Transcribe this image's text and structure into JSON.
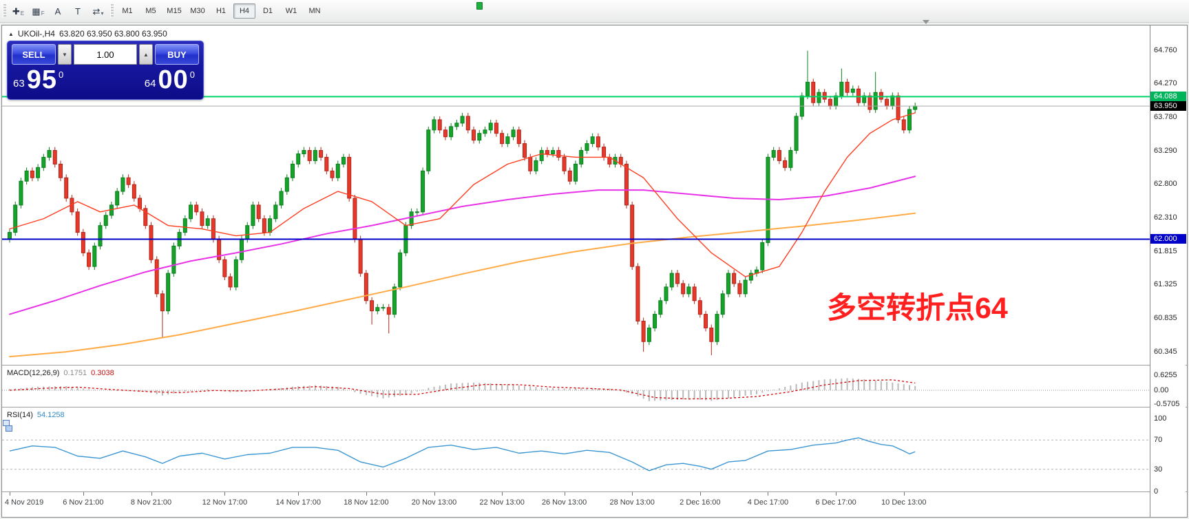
{
  "toolbar": {
    "tool_icons": [
      {
        "name": "crosshair-icon",
        "glyph": "✚",
        "sub": "E"
      },
      {
        "name": "grid-icon",
        "glyph": "▦",
        "sub": "F"
      },
      {
        "name": "text-label-icon",
        "glyph": "A",
        "sub": ""
      },
      {
        "name": "text-box-icon",
        "glyph": "T",
        "sub": ""
      },
      {
        "name": "cursor-cycle-icon",
        "glyph": "⇄",
        "sub": "▾"
      }
    ],
    "timeframes": [
      "M1",
      "M5",
      "M15",
      "M30",
      "H1",
      "H4",
      "D1",
      "W1",
      "MN"
    ],
    "active_timeframe": "H4"
  },
  "window": {
    "symbol_title": "UKOil-,H4",
    "ohlc": "63.820 63.950 63.800 63.950"
  },
  "trade_panel": {
    "sell_label": "SELL",
    "buy_label": "BUY",
    "volume": "1.00",
    "spin_down": "▼",
    "spin_up": "▲",
    "sell_price": {
      "small": "63",
      "big": "95",
      "sup": "0"
    },
    "buy_price": {
      "small": "64",
      "big": "00",
      "sup": "0"
    }
  },
  "annotation": {
    "text": "多空转折点64",
    "color": "#ff1f1f"
  },
  "price_scale": {
    "labels": [
      "64.760",
      "64.270",
      "63.780",
      "63.290",
      "62.800",
      "62.310",
      "61.815",
      "61.325",
      "60.835",
      "60.345"
    ],
    "tags": [
      {
        "text": "64.088",
        "price": 64.088,
        "color": "#00b45c"
      },
      {
        "text": "63.950",
        "price": 63.95,
        "color": "#000000"
      },
      {
        "text": "62.000",
        "price": 62.0,
        "color": "#0000c8"
      }
    ]
  },
  "macd_panel": {
    "label": "MACD(12,26,9)",
    "value_main": "0.1751",
    "value_signal": "0.3038",
    "scale": [
      [
        "0.6255",
        0.6255
      ],
      [
        "0.00",
        0
      ],
      [
        "-0.5705",
        -0.5705
      ]
    ]
  },
  "rsi_panel": {
    "label": "RSI(14)",
    "value": "54.1258",
    "scale": [
      [
        "100",
        100
      ],
      [
        "70",
        70
      ],
      [
        "30",
        30
      ],
      [
        "0",
        0
      ]
    ]
  },
  "time_axis": {
    "labels": [
      {
        "t": "4 Nov 2019",
        "i": 0
      },
      {
        "t": "6 Nov 21:00",
        "i": 13
      },
      {
        "t": "8 Nov 21:00",
        "i": 25
      },
      {
        "t": "12 Nov 17:00",
        "i": 38
      },
      {
        "t": "14 Nov 17:00",
        "i": 51
      },
      {
        "t": "18 Nov 12:00",
        "i": 63
      },
      {
        "t": "20 Nov 13:00",
        "i": 75
      },
      {
        "t": "22 Nov 13:00",
        "i": 87
      },
      {
        "t": "26 Nov 13:00",
        "i": 98
      },
      {
        "t": "28 Nov 13:00",
        "i": 110
      },
      {
        "t": "2 Dec 16:00",
        "i": 122
      },
      {
        "t": "4 Dec 17:00",
        "i": 134
      },
      {
        "t": "6 Dec 17:00",
        "i": 146
      },
      {
        "t": "10 Dec 13:00",
        "i": 158
      }
    ]
  },
  "chart_data": {
    "type": "candlestick",
    "symbol": "UKOil-",
    "timeframe": "H4",
    "title": "UKOil-,H4",
    "ylim": [
      60.16,
      65.09
    ],
    "first_open": 62.0,
    "wick_default": 0.05,
    "closes": [
      62.1,
      62.5,
      62.85,
      63.0,
      62.9,
      63.05,
      63.2,
      63.3,
      63.1,
      62.9,
      62.6,
      62.4,
      62.1,
      61.8,
      61.6,
      61.9,
      62.2,
      62.35,
      62.5,
      62.7,
      62.9,
      62.8,
      62.6,
      62.45,
      62.2,
      61.7,
      61.2,
      60.95,
      61.5,
      61.9,
      62.1,
      62.3,
      62.5,
      62.4,
      62.2,
      62.3,
      62.0,
      61.7,
      61.45,
      61.3,
      61.7,
      62.0,
      62.2,
      62.5,
      62.3,
      62.1,
      62.3,
      62.5,
      62.7,
      62.9,
      63.1,
      63.25,
      63.3,
      63.15,
      63.3,
      63.2,
      63.0,
      62.9,
      63.1,
      63.2,
      62.6,
      62.0,
      61.5,
      61.1,
      60.95,
      61.0,
      61.0,
      60.9,
      61.3,
      61.8,
      62.2,
      62.4,
      62.4,
      63.0,
      63.6,
      63.75,
      63.6,
      63.5,
      63.65,
      63.7,
      63.8,
      63.6,
      63.45,
      63.55,
      63.6,
      63.7,
      63.55,
      63.4,
      63.5,
      63.6,
      63.4,
      63.2,
      63.0,
      63.15,
      63.3,
      63.25,
      63.3,
      63.2,
      63.0,
      62.85,
      63.1,
      63.3,
      63.4,
      63.5,
      63.35,
      63.2,
      63.1,
      63.2,
      63.1,
      62.5,
      61.6,
      60.8,
      60.5,
      60.7,
      60.9,
      61.1,
      61.3,
      61.5,
      61.35,
      61.2,
      61.3,
      61.1,
      60.9,
      60.7,
      60.5,
      60.9,
      61.2,
      61.5,
      61.35,
      61.2,
      61.4,
      61.5,
      61.55,
      61.95,
      63.2,
      63.3,
      63.15,
      63.05,
      63.3,
      63.8,
      64.1,
      64.3,
      64.0,
      64.15,
      64.05,
      63.95,
      64.1,
      64.3,
      64.15,
      64.2,
      64.0,
      64.1,
      63.9,
      64.15,
      64.05,
      63.95,
      64.1,
      63.75,
      63.6,
      63.9,
      63.95
    ],
    "wick_overrides": {
      "27": {
        "l": 60.55
      },
      "64": {
        "l": 60.75
      },
      "67": {
        "l": 60.62
      },
      "112": {
        "l": 60.35
      },
      "124": {
        "l": 60.3
      },
      "141": {
        "h": 64.76
      },
      "147": {
        "h": 64.5
      },
      "153": {
        "h": 64.45
      }
    },
    "ma_red": [
      [
        0,
        62.15
      ],
      [
        6,
        62.3
      ],
      [
        12,
        62.55
      ],
      [
        16,
        62.4
      ],
      [
        22,
        62.5
      ],
      [
        28,
        62.2
      ],
      [
        34,
        62.15
      ],
      [
        40,
        62.05
      ],
      [
        46,
        62.1
      ],
      [
        52,
        62.45
      ],
      [
        58,
        62.7
      ],
      [
        64,
        62.55
      ],
      [
        70,
        62.2
      ],
      [
        76,
        62.3
      ],
      [
        82,
        62.8
      ],
      [
        88,
        63.1
      ],
      [
        94,
        63.25
      ],
      [
        100,
        63.2
      ],
      [
        106,
        63.2
      ],
      [
        112,
        62.9
      ],
      [
        118,
        62.3
      ],
      [
        124,
        61.8
      ],
      [
        130,
        61.45
      ],
      [
        136,
        61.6
      ],
      [
        140,
        62.1
      ],
      [
        144,
        62.7
      ],
      [
        148,
        63.2
      ],
      [
        152,
        63.55
      ],
      [
        156,
        63.75
      ],
      [
        160,
        63.85
      ]
    ],
    "ma_magenta": [
      [
        0,
        60.9
      ],
      [
        8,
        61.1
      ],
      [
        16,
        61.32
      ],
      [
        24,
        61.52
      ],
      [
        32,
        61.68
      ],
      [
        40,
        61.8
      ],
      [
        48,
        61.93
      ],
      [
        56,
        62.08
      ],
      [
        64,
        62.2
      ],
      [
        72,
        62.34
      ],
      [
        80,
        62.48
      ],
      [
        88,
        62.58
      ],
      [
        96,
        62.66
      ],
      [
        104,
        62.72
      ],
      [
        112,
        62.72
      ],
      [
        120,
        62.66
      ],
      [
        128,
        62.6
      ],
      [
        136,
        62.58
      ],
      [
        144,
        62.63
      ],
      [
        152,
        62.75
      ],
      [
        160,
        62.92
      ]
    ],
    "ma_orange": [
      [
        0,
        60.28
      ],
      [
        10,
        60.35
      ],
      [
        20,
        60.46
      ],
      [
        30,
        60.6
      ],
      [
        40,
        60.77
      ],
      [
        50,
        60.94
      ],
      [
        60,
        61.12
      ],
      [
        70,
        61.3
      ],
      [
        80,
        61.49
      ],
      [
        90,
        61.67
      ],
      [
        100,
        61.82
      ],
      [
        110,
        61.94
      ],
      [
        120,
        62.03
      ],
      [
        130,
        62.11
      ],
      [
        140,
        62.19
      ],
      [
        150,
        62.28
      ],
      [
        160,
        62.38
      ]
    ],
    "levels": {
      "resistance": 64.088,
      "bid": 63.95,
      "support": 62.0
    },
    "macd": {
      "ylim": [
        -0.5705,
        0.6255
      ],
      "hist": [
        [
          0,
          0.05
        ],
        [
          5,
          0.15
        ],
        [
          10,
          0.17
        ],
        [
          14,
          0.04
        ],
        [
          18,
          -0.02
        ],
        [
          24,
          -0.06
        ],
        [
          27,
          -0.22
        ],
        [
          31,
          -0.05
        ],
        [
          35,
          0.05
        ],
        [
          39,
          -0.08
        ],
        [
          44,
          0.0
        ],
        [
          50,
          0.15
        ],
        [
          54,
          0.21
        ],
        [
          58,
          0.14
        ],
        [
          62,
          -0.15
        ],
        [
          66,
          -0.34
        ],
        [
          70,
          -0.2
        ],
        [
          74,
          0.1
        ],
        [
          78,
          0.28
        ],
        [
          82,
          0.32
        ],
        [
          86,
          0.27
        ],
        [
          90,
          0.2
        ],
        [
          94,
          0.12
        ],
        [
          98,
          0.07
        ],
        [
          102,
          0.1
        ],
        [
          106,
          0.07
        ],
        [
          110,
          -0.15
        ],
        [
          113,
          -0.45
        ],
        [
          117,
          -0.4
        ],
        [
          121,
          -0.37
        ],
        [
          124,
          -0.44
        ],
        [
          128,
          -0.3
        ],
        [
          132,
          -0.16
        ],
        [
          136,
          0.08
        ],
        [
          140,
          0.32
        ],
        [
          144,
          0.45
        ],
        [
          148,
          0.5
        ],
        [
          152,
          0.44
        ],
        [
          156,
          0.32
        ],
        [
          160,
          0.18
        ]
      ],
      "signal": [
        [
          0,
          0.0
        ],
        [
          6,
          0.08
        ],
        [
          12,
          0.13
        ],
        [
          18,
          0.03
        ],
        [
          24,
          -0.05
        ],
        [
          30,
          -0.1
        ],
        [
          36,
          -0.01
        ],
        [
          42,
          -0.03
        ],
        [
          48,
          0.05
        ],
        [
          54,
          0.15
        ],
        [
          60,
          0.07
        ],
        [
          66,
          -0.16
        ],
        [
          72,
          -0.17
        ],
        [
          78,
          0.06
        ],
        [
          84,
          0.24
        ],
        [
          90,
          0.23
        ],
        [
          96,
          0.13
        ],
        [
          102,
          0.08
        ],
        [
          108,
          0.01
        ],
        [
          114,
          -0.3
        ],
        [
          120,
          -0.36
        ],
        [
          126,
          -0.34
        ],
        [
          132,
          -0.26
        ],
        [
          138,
          -0.06
        ],
        [
          144,
          0.22
        ],
        [
          150,
          0.4
        ],
        [
          156,
          0.43
        ],
        [
          160,
          0.3
        ]
      ]
    },
    "rsi": {
      "ylim": [
        0,
        100
      ],
      "levels": [
        70,
        30
      ],
      "points": [
        [
          0,
          55
        ],
        [
          4,
          62
        ],
        [
          8,
          60
        ],
        [
          12,
          48
        ],
        [
          16,
          45
        ],
        [
          20,
          55
        ],
        [
          24,
          47
        ],
        [
          27,
          38
        ],
        [
          30,
          48
        ],
        [
          34,
          52
        ],
        [
          38,
          44
        ],
        [
          42,
          50
        ],
        [
          46,
          52
        ],
        [
          50,
          60
        ],
        [
          54,
          60
        ],
        [
          58,
          56
        ],
        [
          62,
          40
        ],
        [
          66,
          33
        ],
        [
          70,
          45
        ],
        [
          74,
          60
        ],
        [
          78,
          63
        ],
        [
          82,
          57
        ],
        [
          86,
          60
        ],
        [
          90,
          52
        ],
        [
          94,
          55
        ],
        [
          98,
          51
        ],
        [
          102,
          56
        ],
        [
          106,
          53
        ],
        [
          110,
          40
        ],
        [
          113,
          28
        ],
        [
          116,
          36
        ],
        [
          119,
          38
        ],
        [
          122,
          34
        ],
        [
          124,
          30
        ],
        [
          127,
          40
        ],
        [
          130,
          42
        ],
        [
          134,
          55
        ],
        [
          138,
          57
        ],
        [
          142,
          63
        ],
        [
          146,
          66
        ],
        [
          148,
          70
        ],
        [
          150,
          73
        ],
        [
          152,
          68
        ],
        [
          154,
          64
        ],
        [
          156,
          62
        ],
        [
          158,
          55
        ],
        [
          159,
          51
        ],
        [
          160,
          54
        ]
      ]
    },
    "colors": {
      "up": "#16a32a",
      "up_border": "#0b7d1d",
      "down": "#e6392b",
      "down_border": "#b02518",
      "ma_red": "#ff3c1e",
      "ma_magenta": "#e832e8",
      "ma_orange": "#ffaa45",
      "support_line": "#0000c8",
      "resistance_line": "#00d46a",
      "bid_line": "#aaaaaa",
      "macd_hist": "#b9b9b9",
      "macd_signal": "#d40000",
      "macd_zero": "#909090",
      "rsi_line": "#3a96d2",
      "rsi_level": "#b4b4b4",
      "macd_value_main": "#8a8a8a",
      "macd_value_signal": "#c41111",
      "rsi_value": "#2f89c5"
    }
  }
}
